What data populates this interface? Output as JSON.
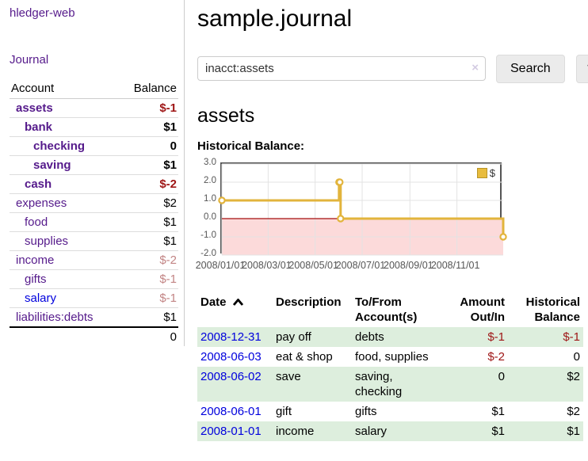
{
  "colors": {
    "link_purple": "#551a8b",
    "link_blue": "#0000dd",
    "negative_red": "#9e1515",
    "negative_muted_rose": "#c28484",
    "row_stripe_green": "#ddeedd",
    "sidebar_divider": "#cccccc",
    "button_gray": "#ebebeb"
  },
  "sidebar": {
    "app_title": "hledger-web",
    "journal_label": "Journal",
    "columns": {
      "account": "Account",
      "balance": "Balance"
    },
    "accounts": [
      {
        "name": "assets",
        "indent": 1,
        "bold": true,
        "name_style": "purple",
        "balance": "$-1",
        "balance_style": "neg"
      },
      {
        "name": "bank",
        "indent": 2,
        "bold": true,
        "name_style": "purple",
        "balance": "$1",
        "balance_style": "pos"
      },
      {
        "name": "checking",
        "indent": 3,
        "bold": true,
        "name_style": "purple",
        "balance": "0",
        "balance_style": "pos"
      },
      {
        "name": "saving",
        "indent": 3,
        "bold": true,
        "name_style": "purple",
        "balance": "$1",
        "balance_style": "pos"
      },
      {
        "name": "cash",
        "indent": 2,
        "bold": true,
        "name_style": "purple",
        "balance": "$-2",
        "balance_style": "neg"
      },
      {
        "name": "expenses",
        "indent": 1,
        "bold": false,
        "name_style": "purple",
        "balance": "$2",
        "balance_style": "pos"
      },
      {
        "name": "food",
        "indent": 2,
        "bold": false,
        "name_style": "purple",
        "balance": "$1",
        "balance_style": "pos"
      },
      {
        "name": "supplies",
        "indent": 2,
        "bold": false,
        "name_style": "purple",
        "balance": "$1",
        "balance_style": "pos"
      },
      {
        "name": "income",
        "indent": 1,
        "bold": false,
        "name_style": "purple",
        "balance": "$-2",
        "balance_style": "negmuted"
      },
      {
        "name": "gifts",
        "indent": 2,
        "bold": false,
        "name_style": "purple",
        "balance": "$-1",
        "balance_style": "negmuted"
      },
      {
        "name": "salary",
        "indent": 2,
        "bold": false,
        "name_style": "blue",
        "balance": "$-1",
        "balance_style": "negmuted"
      },
      {
        "name": "liabilities:debts",
        "indent": 1,
        "bold": false,
        "name_style": "purple",
        "balance": "$1",
        "balance_style": "pos"
      }
    ],
    "total": "0"
  },
  "main": {
    "title": "sample.journal",
    "search": {
      "value": "inacct:assets",
      "clear_icon": "×",
      "search_button": "Search",
      "help_button": "?"
    },
    "account_heading": "assets",
    "chart_heading": "Historical Balance:"
  },
  "chart_data": {
    "type": "line",
    "title": "Historical Balance:",
    "steps": true,
    "series": [
      {
        "name": "$",
        "points": [
          [
            "2008-01-01",
            1
          ],
          [
            "2008-06-01",
            2
          ],
          [
            "2008-06-02",
            2
          ],
          [
            "2008-06-03",
            0
          ],
          [
            "2008-12-31",
            -1
          ]
        ]
      }
    ],
    "xlim": [
      "2008-01-01",
      "2008-12-31"
    ],
    "ylim": [
      -2,
      3
    ],
    "yticks": [
      3,
      2,
      1,
      0,
      -1,
      -2
    ],
    "ytick_labels": [
      "3.0",
      "2.0",
      "1.0",
      "0.0",
      "-1.0",
      "-2.0"
    ],
    "xticks": [
      "2008-01-01",
      "2008-03-01",
      "2008-05-01",
      "2008-07-01",
      "2008-09-01",
      "2008-11-01"
    ],
    "xtick_labels": [
      "2008/01/01",
      "2008/03/01",
      "2008/05/01",
      "2008/07/01",
      "2008/09/01",
      "2008/11/01"
    ],
    "legend": {
      "label": "$",
      "position": "top-right"
    },
    "grid": true,
    "colors": {
      "line": "#e2b43c",
      "marker_fill": "#ffffff",
      "zero_line": "#a40f0f",
      "negative_region": "#fcdada",
      "grid": "#e3e3e3",
      "border": "#555555",
      "legend_box": "#e8bc3d",
      "legend_box_border": "#b89427"
    }
  },
  "table": {
    "headers": {
      "date": "Date",
      "description": "Description",
      "accounts": "To/From Account(s)",
      "amount": "Amount Out/In",
      "balance": "Historical Balance"
    },
    "sort_icon": "chevron-up",
    "rows": [
      {
        "date": "2008-12-31",
        "description": "pay off",
        "accounts": "debts",
        "amount": "$-1",
        "amount_style": "neg",
        "balance": "$-1",
        "balance_style": "neg"
      },
      {
        "date": "2008-06-03",
        "description": "eat & shop",
        "accounts": "food, supplies",
        "amount": "$-2",
        "amount_style": "neg",
        "balance": "0",
        "balance_style": "pos"
      },
      {
        "date": "2008-06-02",
        "description": "save",
        "accounts": "saving, checking",
        "amount": "0",
        "amount_style": "pos",
        "balance": "$2",
        "balance_style": "pos"
      },
      {
        "date": "2008-06-01",
        "description": "gift",
        "accounts": "gifts",
        "amount": "$1",
        "amount_style": "pos",
        "balance": "$2",
        "balance_style": "pos"
      },
      {
        "date": "2008-01-01",
        "description": "income",
        "accounts": "salary",
        "amount": "$1",
        "amount_style": "pos",
        "balance": "$1",
        "balance_style": "pos"
      }
    ]
  }
}
